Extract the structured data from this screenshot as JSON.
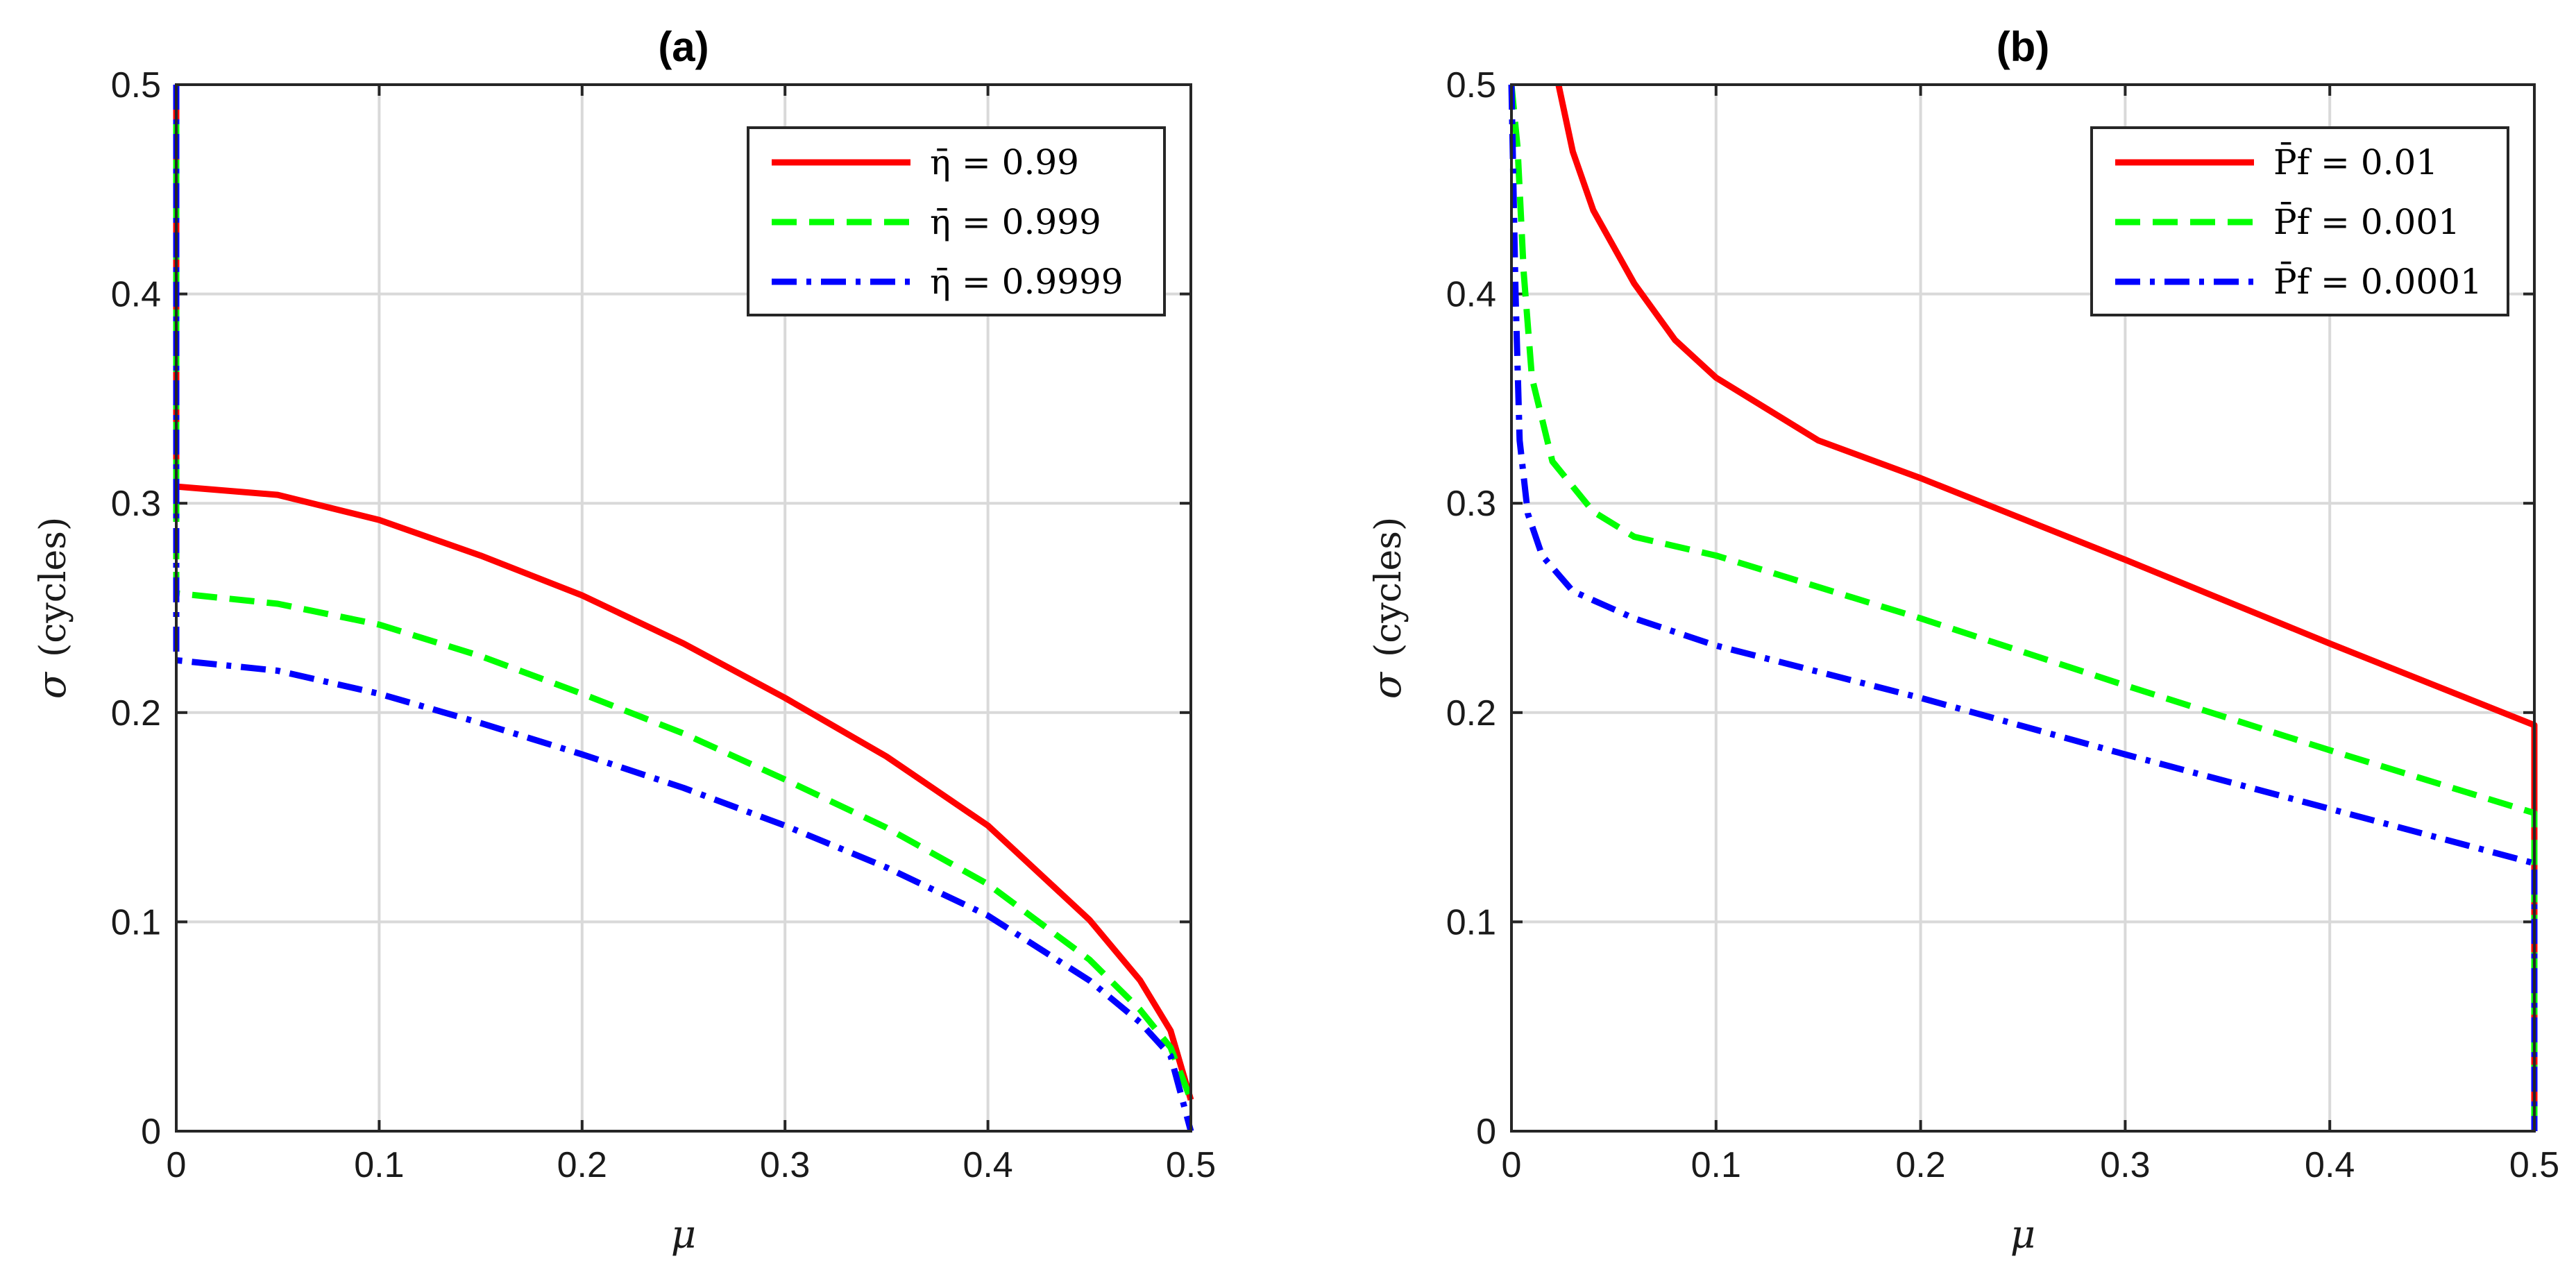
{
  "chart_data": [
    {
      "id": "a",
      "type": "line",
      "title": "(a)",
      "xlabel": "μ",
      "ylabel_symbol": "σ",
      "ylabel_unit": "(cycles)",
      "xlim": [
        0,
        0.5
      ],
      "ylim": [
        0,
        0.5
      ],
      "xticks": [
        "0",
        "0.1",
        "0.2",
        "0.3",
        "0.4",
        "0.5"
      ],
      "yticks": [
        "0",
        "0.1",
        "0.2",
        "0.3",
        "0.4",
        "0.5"
      ],
      "grid": true,
      "legend_position": "top-right",
      "series": [
        {
          "name": "η̄ = 0.99",
          "color": "#ff0000",
          "dash": "solid",
          "points": [
            [
              0,
              0.5
            ],
            [
              0,
              0.308
            ],
            [
              0.05,
              0.304
            ],
            [
              0.1,
              0.292
            ],
            [
              0.15,
              0.275
            ],
            [
              0.2,
              0.256
            ],
            [
              0.25,
              0.233
            ],
            [
              0.3,
              0.207
            ],
            [
              0.35,
              0.179
            ],
            [
              0.4,
              0.146
            ],
            [
              0.45,
              0.101
            ],
            [
              0.475,
              0.072
            ],
            [
              0.49,
              0.048
            ],
            [
              0.5,
              0.015
            ]
          ]
        },
        {
          "name": "η̄ = 0.999",
          "color": "#00ff00",
          "dash": "dashed",
          "points": [
            [
              0,
              0.5
            ],
            [
              0,
              0.257
            ],
            [
              0.05,
              0.252
            ],
            [
              0.1,
              0.242
            ],
            [
              0.15,
              0.227
            ],
            [
              0.2,
              0.209
            ],
            [
              0.25,
              0.19
            ],
            [
              0.3,
              0.168
            ],
            [
              0.35,
              0.145
            ],
            [
              0.4,
              0.118
            ],
            [
              0.45,
              0.082
            ],
            [
              0.475,
              0.058
            ],
            [
              0.49,
              0.04
            ],
            [
              0.5,
              0.015
            ]
          ]
        },
        {
          "name": "η̄ = 0.9999",
          "color": "#0000ff",
          "dash": "dashdot",
          "points": [
            [
              0,
              0.5
            ],
            [
              0,
              0.225
            ],
            [
              0.05,
              0.22
            ],
            [
              0.1,
              0.209
            ],
            [
              0.15,
              0.195
            ],
            [
              0.2,
              0.18
            ],
            [
              0.25,
              0.164
            ],
            [
              0.3,
              0.146
            ],
            [
              0.35,
              0.126
            ],
            [
              0.4,
              0.103
            ],
            [
              0.45,
              0.072
            ],
            [
              0.475,
              0.052
            ],
            [
              0.49,
              0.036
            ],
            [
              0.5,
              0
            ]
          ]
        }
      ]
    },
    {
      "id": "b",
      "type": "line",
      "title": "(b)",
      "xlabel": "μ",
      "ylabel_symbol": "σ",
      "ylabel_unit": "(cycles)",
      "xlim": [
        0,
        0.5
      ],
      "ylim": [
        0,
        0.5
      ],
      "xticks": [
        "0",
        "0.1",
        "0.2",
        "0.3",
        "0.4",
        "0.5"
      ],
      "yticks": [
        "0",
        "0.1",
        "0.2",
        "0.3",
        "0.4",
        "0.5"
      ],
      "grid": true,
      "legend_position": "top-right",
      "series": [
        {
          "name": "P̄f = 0.01",
          "color": "#ff0000",
          "dash": "solid",
          "points": [
            [
              0.023,
              0.5
            ],
            [
              0.03,
              0.468
            ],
            [
              0.04,
              0.44
            ],
            [
              0.06,
              0.405
            ],
            [
              0.08,
              0.378
            ],
            [
              0.1,
              0.36
            ],
            [
              0.15,
              0.33
            ],
            [
              0.2,
              0.312
            ],
            [
              0.3,
              0.273
            ],
            [
              0.4,
              0.233
            ],
            [
              0.5,
              0.194
            ],
            [
              0.5,
              0
            ]
          ]
        },
        {
          "name": "P̄f = 0.001",
          "color": "#00ff00",
          "dash": "dashed",
          "points": [
            [
              0,
              0.5
            ],
            [
              0.003,
              0.47
            ],
            [
              0.006,
              0.41
            ],
            [
              0.01,
              0.36
            ],
            [
              0.02,
              0.32
            ],
            [
              0.04,
              0.296
            ],
            [
              0.06,
              0.284
            ],
            [
              0.1,
              0.275
            ],
            [
              0.2,
              0.245
            ],
            [
              0.3,
              0.213
            ],
            [
              0.4,
              0.182
            ],
            [
              0.5,
              0.152
            ],
            [
              0.5,
              0
            ]
          ]
        },
        {
          "name": "P̄f = 0.0001",
          "color": "#0000ff",
          "dash": "dashdot",
          "points": [
            [
              0,
              0.5
            ],
            [
              0.002,
              0.4
            ],
            [
              0.004,
              0.33
            ],
            [
              0.008,
              0.295
            ],
            [
              0.015,
              0.275
            ],
            [
              0.03,
              0.258
            ],
            [
              0.06,
              0.245
            ],
            [
              0.1,
              0.232
            ],
            [
              0.2,
              0.207
            ],
            [
              0.3,
              0.18
            ],
            [
              0.4,
              0.154
            ],
            [
              0.5,
              0.128
            ],
            [
              0.5,
              0
            ]
          ]
        }
      ]
    }
  ]
}
